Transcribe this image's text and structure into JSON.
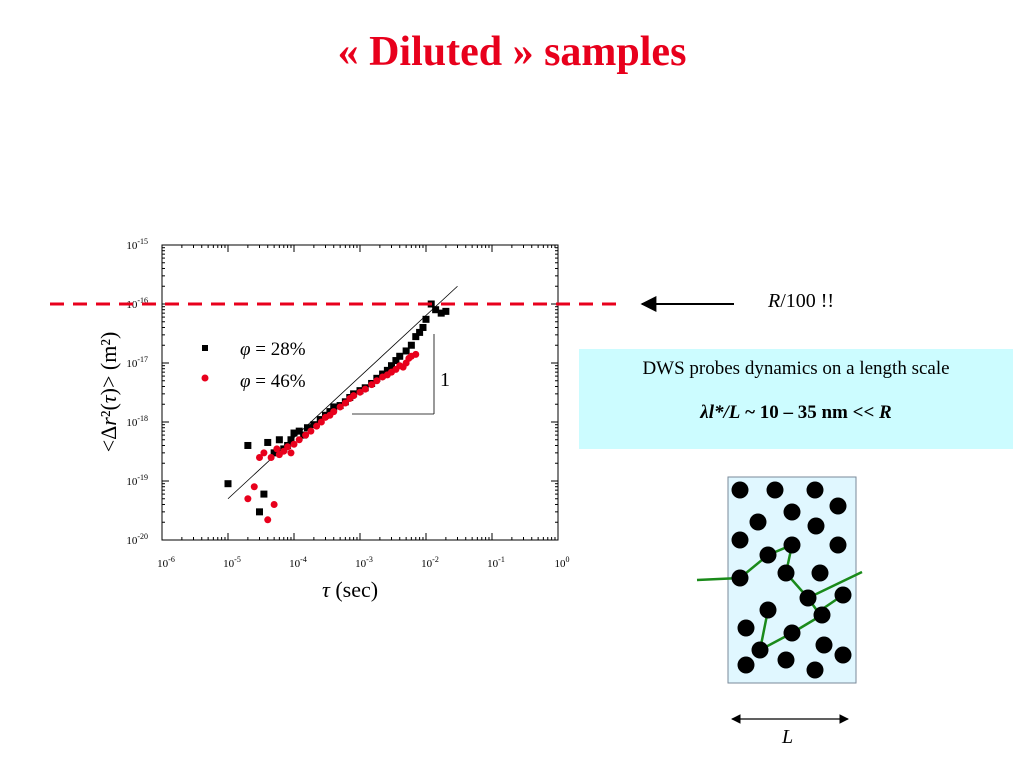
{
  "slide": {
    "title": "« Diluted » samples",
    "annotation_right": "/100 !!",
    "annotation_right_symbol": "R",
    "dws_box": {
      "line1": "DWS probes dynamics on a length scale",
      "line2_symbol": "λ",
      "line2_a": "l*/L",
      "line2_b": " ~ 10 – 35 nm  << ",
      "line2_c": "R",
      "bg_color": "#ccfcff"
    },
    "diagram_label": "L"
  },
  "chart_data": {
    "type": "scatter",
    "xscale": "log",
    "yscale": "log",
    "xlim": [
      1e-06,
      1
    ],
    "ylim": [
      1e-20,
      1e-15
    ],
    "xticks": [
      "10-6",
      "10-5",
      "10-4",
      "10-3",
      "10-2",
      "10-1",
      "100"
    ],
    "yticks": [
      "10-20",
      "10-19",
      "10-18",
      "10-17",
      "10-16",
      "10-15"
    ],
    "xlabel_symbol": "τ",
    "xlabel": " (sec)",
    "ylabel": "<Δr²(τ)> (m²)",
    "slope_label": "1",
    "reference_line": {
      "y": 1e-16,
      "color": "#e8001c",
      "style": "dashed"
    },
    "fit_line": [
      [
        1e-05,
        5e-20
      ],
      [
        0.03,
        2e-16
      ]
    ],
    "series": [
      {
        "name": "φ = 28%",
        "color": "#000000",
        "marker": "square",
        "points": [
          [
            1e-05,
            9e-20
          ],
          [
            2e-05,
            4e-19
          ],
          [
            3e-05,
            3e-20
          ],
          [
            3.5e-05,
            6e-20
          ],
          [
            4e-05,
            4.5e-19
          ],
          [
            5e-05,
            3e-19
          ],
          [
            6e-05,
            5e-19
          ],
          [
            7e-05,
            3.5e-19
          ],
          [
            8e-05,
            4e-19
          ],
          [
            9e-05,
            5e-19
          ],
          [
            0.0001,
            6.5e-19
          ],
          [
            0.00012,
            7e-19
          ],
          [
            0.00014,
            6e-19
          ],
          [
            0.00016,
            8e-19
          ],
          [
            0.0002,
            9e-19
          ],
          [
            0.00025,
            1.1e-18
          ],
          [
            0.0003,
            1.3e-18
          ],
          [
            0.00035,
            1.5e-18
          ],
          [
            0.0004,
            1.8e-18
          ],
          [
            0.0005,
            1.9e-18
          ],
          [
            0.0006,
            2.2e-18
          ],
          [
            0.0007,
            2.6e-18
          ],
          [
            0.0008,
            3e-18
          ],
          [
            0.001,
            3.4e-18
          ],
          [
            0.0012,
            3.8e-18
          ],
          [
            0.0015,
            4.5e-18
          ],
          [
            0.0018,
            5.5e-18
          ],
          [
            0.0022,
            6.5e-18
          ],
          [
            0.0026,
            7.5e-18
          ],
          [
            0.003,
            9e-18
          ],
          [
            0.0035,
            1.1e-17
          ],
          [
            0.004,
            1.3e-17
          ],
          [
            0.005,
            1.6e-17
          ],
          [
            0.006,
            2e-17
          ],
          [
            0.007,
            2.8e-17
          ],
          [
            0.008,
            3.3e-17
          ],
          [
            0.009,
            4e-17
          ],
          [
            0.01,
            5.5e-17
          ],
          [
            0.012,
            1e-16
          ],
          [
            0.014,
            8e-17
          ],
          [
            0.017,
            7e-17
          ],
          [
            0.02,
            7.5e-17
          ]
        ]
      },
      {
        "name": "φ = 46%",
        "color": "#e8001c",
        "marker": "circle",
        "points": [
          [
            2e-05,
            5e-20
          ],
          [
            2.5e-05,
            8e-20
          ],
          [
            3e-05,
            2.5e-19
          ],
          [
            3.5e-05,
            3e-19
          ],
          [
            4e-05,
            2.2e-20
          ],
          [
            4.5e-05,
            2.5e-19
          ],
          [
            5e-05,
            4e-20
          ],
          [
            5.5e-05,
            3.5e-19
          ],
          [
            6e-05,
            2.8e-19
          ],
          [
            7e-05,
            3.2e-19
          ],
          [
            8e-05,
            3.8e-19
          ],
          [
            9e-05,
            3e-19
          ],
          [
            0.0001,
            4.2e-19
          ],
          [
            0.00012,
            5e-19
          ],
          [
            0.00015,
            6e-19
          ],
          [
            0.00018,
            7e-19
          ],
          [
            0.00022,
            8.5e-19
          ],
          [
            0.00026,
            1e-18
          ],
          [
            0.0003,
            1.2e-18
          ],
          [
            0.00035,
            1.3e-18
          ],
          [
            0.0004,
            1.5e-18
          ],
          [
            0.0005,
            1.8e-18
          ],
          [
            0.0006,
            2.1e-18
          ],
          [
            0.0007,
            2.5e-18
          ],
          [
            0.0008,
            2.8e-18
          ],
          [
            0.001,
            3.2e-18
          ],
          [
            0.0012,
            3.6e-18
          ],
          [
            0.0015,
            4.3e-18
          ],
          [
            0.0018,
            5e-18
          ],
          [
            0.0022,
            5.8e-18
          ],
          [
            0.0026,
            6.3e-18
          ],
          [
            0.003,
            7e-18
          ],
          [
            0.0035,
            7.8e-18
          ],
          [
            0.004,
            9e-18
          ],
          [
            0.0045,
            8.5e-18
          ],
          [
            0.005,
            1e-17
          ],
          [
            0.0055,
            1.2e-17
          ],
          [
            0.006,
            1.3e-17
          ],
          [
            0.007,
            1.4e-17
          ]
        ]
      }
    ]
  }
}
